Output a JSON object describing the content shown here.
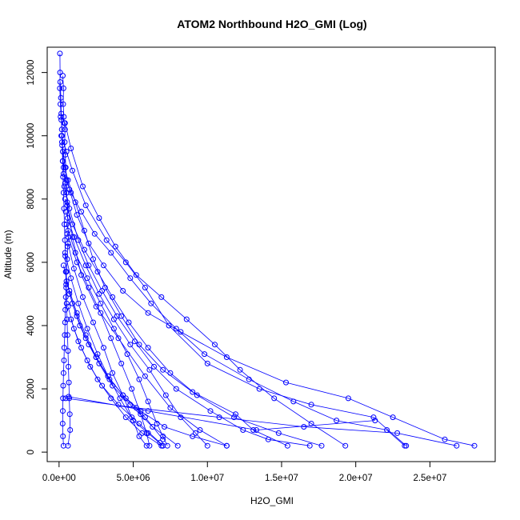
{
  "chart_data": {
    "type": "line",
    "title": "ATOM2 Northbound H2O_GMI (Log)",
    "xlabel": "H2O_GMI",
    "ylabel": "Altitude (m)",
    "xlim": [
      -800000,
      29400000
    ],
    "ylim": [
      -300,
      12800
    ],
    "xticks": [
      0,
      5000000,
      10000000,
      15000000,
      20000000,
      25000000
    ],
    "xtick_labels": [
      "0.0e+00",
      "5.0e+06",
      "1.0e+07",
      "1.5e+07",
      "2.0e+07",
      "2.5e+07"
    ],
    "yticks": [
      0,
      2000,
      4000,
      6000,
      8000,
      10000,
      12000
    ],
    "ytick_labels": [
      "0",
      "2000",
      "4000",
      "6000",
      "8000",
      "10000",
      "12000"
    ],
    "grid": false,
    "marker": "open-circle",
    "color": "#0000ff",
    "series": [
      {
        "values": [
          [
            60000,
            12600
          ],
          [
            70000,
            12000
          ],
          [
            50000,
            11500
          ],
          [
            90000,
            11000
          ],
          [
            150000,
            10500
          ],
          [
            200000,
            10000
          ],
          [
            250000,
            9500
          ],
          [
            300000,
            9000
          ],
          [
            400000,
            8500
          ],
          [
            550000,
            7900
          ],
          [
            900000,
            6800
          ],
          [
            1500000,
            5600
          ],
          [
            2500000,
            4600
          ],
          [
            4000000,
            3600
          ],
          [
            5800000,
            2400
          ],
          [
            7500000,
            1400
          ],
          [
            9500000,
            700
          ],
          [
            11300000,
            200
          ]
        ]
      },
      {
        "values": [
          [
            100000,
            10600
          ],
          [
            400000,
            10400
          ],
          [
            800000,
            9600
          ],
          [
            1600000,
            8400
          ],
          [
            2700000,
            7400
          ],
          [
            3800000,
            6500
          ],
          [
            5200000,
            5600
          ],
          [
            6900000,
            4900
          ],
          [
            8600000,
            4200
          ],
          [
            10500000,
            3400
          ],
          [
            12200000,
            2600
          ],
          [
            14500000,
            1700
          ],
          [
            17000000,
            900
          ],
          [
            19300000,
            200
          ]
        ]
      },
      {
        "values": [
          [
            150000,
            10000
          ],
          [
            500000,
            9500
          ],
          [
            900000,
            8900
          ],
          [
            1800000,
            7800
          ],
          [
            3200000,
            6700
          ],
          [
            4500000,
            6000
          ],
          [
            5800000,
            5200
          ],
          [
            7400000,
            4000
          ],
          [
            10000000,
            2800
          ],
          [
            13500000,
            2000
          ],
          [
            17000000,
            1500
          ],
          [
            21200000,
            1100
          ],
          [
            23400000,
            200
          ]
        ]
      },
      {
        "values": [
          [
            200000,
            9800
          ],
          [
            400000,
            9000
          ],
          [
            700000,
            8300
          ],
          [
            1200000,
            7500
          ],
          [
            2000000,
            6600
          ],
          [
            3000000,
            5900
          ],
          [
            4300000,
            5100
          ],
          [
            6000000,
            4400
          ],
          [
            8200000,
            3800
          ],
          [
            11300000,
            3000
          ],
          [
            15300000,
            2200
          ],
          [
            19500000,
            1700
          ],
          [
            22500000,
            1100
          ],
          [
            26000000,
            400
          ],
          [
            28000000,
            200
          ]
        ]
      },
      {
        "values": [
          [
            250000,
            9200
          ],
          [
            600000,
            8600
          ],
          [
            1100000,
            7900
          ],
          [
            1700000,
            7000
          ],
          [
            2300000,
            6100
          ],
          [
            3100000,
            5200
          ],
          [
            4200000,
            4300
          ],
          [
            5400000,
            3400
          ],
          [
            7000000,
            2600
          ],
          [
            9000000,
            1900
          ],
          [
            11900000,
            1200
          ],
          [
            13100000,
            700
          ],
          [
            15400000,
            200
          ]
        ]
      },
      {
        "values": [
          [
            300000,
            8800
          ],
          [
            800000,
            8200
          ],
          [
            1500000,
            7600
          ],
          [
            2400000,
            6900
          ],
          [
            3500000,
            6300
          ],
          [
            4800000,
            5500
          ],
          [
            6200000,
            4700
          ],
          [
            7900000,
            3900
          ],
          [
            9800000,
            3100
          ],
          [
            12800000,
            2300
          ],
          [
            15800000,
            1600
          ],
          [
            18700000,
            1000
          ],
          [
            22100000,
            700
          ],
          [
            23300000,
            200
          ]
        ]
      },
      {
        "values": [
          [
            350000,
            8400
          ],
          [
            700000,
            7700
          ],
          [
            1300000,
            6700
          ],
          [
            2000000,
            5900
          ],
          [
            2900000,
            5100
          ],
          [
            3900000,
            4300
          ],
          [
            5100000,
            3500
          ],
          [
            6400000,
            2700
          ],
          [
            7900000,
            2000
          ],
          [
            10200000,
            1300
          ],
          [
            12400000,
            700
          ],
          [
            14100000,
            400
          ],
          [
            16900000,
            200
          ]
        ]
      },
      {
        "values": [
          [
            400000,
            8000
          ],
          [
            900000,
            7200
          ],
          [
            1700000,
            6400
          ],
          [
            2600000,
            5700
          ],
          [
            3600000,
            4900
          ],
          [
            4700000,
            4100
          ],
          [
            6000000,
            3300
          ],
          [
            7500000,
            2500
          ],
          [
            9300000,
            1800
          ],
          [
            11800000,
            1100
          ],
          [
            14800000,
            600
          ],
          [
            17700000,
            200
          ]
        ]
      },
      {
        "values": [
          [
            450000,
            7600
          ],
          [
            1000000,
            6800
          ],
          [
            1800000,
            5900
          ],
          [
            2700000,
            5000
          ],
          [
            3700000,
            4200
          ],
          [
            4800000,
            3400
          ],
          [
            6100000,
            2600
          ],
          [
            7200000,
            1800
          ],
          [
            8200000,
            1100
          ],
          [
            9200000,
            600
          ],
          [
            10000000,
            200
          ]
        ]
      },
      {
        "values": [
          [
            500000,
            7200
          ],
          [
            1100000,
            6300
          ],
          [
            1900000,
            5500
          ],
          [
            2800000,
            4700
          ],
          [
            3700000,
            3900
          ],
          [
            4600000,
            3100
          ],
          [
            5400000,
            2300
          ],
          [
            6000000,
            1600
          ],
          [
            6600000,
            900
          ],
          [
            7000000,
            500
          ],
          [
            7300000,
            200
          ]
        ]
      },
      {
        "values": [
          [
            550000,
            6900
          ],
          [
            1200000,
            6000
          ],
          [
            2000000,
            5200
          ],
          [
            2800000,
            4400
          ],
          [
            3500000,
            3600
          ],
          [
            4200000,
            2800
          ],
          [
            4900000,
            2000
          ],
          [
            5500000,
            1200
          ],
          [
            5900000,
            600
          ],
          [
            6100000,
            200
          ]
        ]
      },
      {
        "values": [
          [
            600000,
            6600
          ],
          [
            1000000,
            5800
          ],
          [
            1600000,
            4900
          ],
          [
            2300000,
            4100
          ],
          [
            3000000,
            3300
          ],
          [
            3600000,
            2500
          ],
          [
            4300000,
            1800
          ],
          [
            4900000,
            1100
          ],
          [
            5400000,
            500
          ],
          [
            5900000,
            200
          ]
        ]
      },
      {
        "values": [
          [
            400000,
            6300
          ],
          [
            800000,
            5500
          ],
          [
            1300000,
            4700
          ],
          [
            1900000,
            3900
          ],
          [
            2600000,
            3100
          ],
          [
            3300000,
            2400
          ],
          [
            4100000,
            1700
          ],
          [
            5000000,
            1000
          ],
          [
            6000000,
            600
          ],
          [
            7000000,
            200
          ]
        ]
      },
      {
        "values": [
          [
            300000,
            5900
          ],
          [
            700000,
            5100
          ],
          [
            1200000,
            4400
          ],
          [
            1800000,
            3700
          ],
          [
            2500000,
            3000
          ],
          [
            3400000,
            2300
          ],
          [
            4500000,
            1700
          ],
          [
            5800000,
            1100
          ],
          [
            7000000,
            400
          ]
        ]
      },
      {
        "values": [
          [
            500000,
            5400
          ],
          [
            900000,
            4700
          ],
          [
            1400000,
            4000
          ],
          [
            2000000,
            3400
          ],
          [
            2700000,
            2800
          ],
          [
            3600000,
            2100
          ],
          [
            4800000,
            1500
          ],
          [
            6300000,
            800
          ],
          [
            8000000,
            200
          ]
        ]
      },
      {
        "values": [
          [
            700000,
            5000
          ],
          [
            1200000,
            4300
          ],
          [
            1800000,
            3600
          ],
          [
            2500000,
            3000
          ],
          [
            3300000,
            2400
          ],
          [
            4300000,
            1800
          ],
          [
            5500000,
            1300
          ],
          [
            7100000,
            800
          ],
          [
            9000000,
            500
          ],
          [
            11300000,
            200
          ]
        ]
      },
      {
        "values": [
          [
            650000,
            1750
          ],
          [
            6000000,
            1300
          ],
          [
            13300000,
            700
          ],
          [
            21300000,
            1000
          ]
        ]
      },
      {
        "values": [
          [
            450000,
            1700
          ],
          [
            5200000,
            1400
          ],
          [
            10800000,
            1100
          ],
          [
            16500000,
            800
          ],
          [
            22800000,
            600
          ],
          [
            26800000,
            200
          ]
        ]
      },
      {
        "values": [
          [
            600000,
            4600
          ],
          [
            1000000,
            3900
          ],
          [
            1500000,
            3300
          ],
          [
            2100000,
            2700
          ],
          [
            2900000,
            2100
          ],
          [
            4000000,
            1500
          ],
          [
            5400000,
            900
          ],
          [
            6800000,
            300
          ],
          [
            7000000,
            200
          ]
        ]
      },
      {
        "values": [
          [
            800000,
            4200
          ],
          [
            1300000,
            3500
          ],
          [
            1900000,
            2900
          ],
          [
            2600000,
            2300
          ],
          [
            3500000,
            1700
          ],
          [
            4500000,
            1100
          ],
          [
            5600000,
            600
          ],
          [
            6900000,
            200
          ]
        ]
      },
      {
        "values": [
          [
            250000,
            11900
          ],
          [
            300000,
            11500
          ],
          [
            280000,
            11000
          ],
          [
            320000,
            10600
          ],
          [
            350000,
            10400
          ],
          [
            400000,
            10200
          ],
          [
            380000,
            9800
          ],
          [
            420000,
            9400
          ],
          [
            450000,
            9000
          ],
          [
            500000,
            8600
          ],
          [
            520000,
            8200
          ],
          [
            550000,
            7800
          ],
          [
            580000,
            7400
          ],
          [
            600000,
            7000
          ],
          [
            620000,
            6800
          ],
          [
            580000,
            6500
          ],
          [
            550000,
            6100
          ],
          [
            500000,
            5700
          ],
          [
            480000,
            5300
          ],
          [
            450000,
            4900
          ],
          [
            420000,
            4500
          ],
          [
            400000,
            4100
          ],
          [
            380000,
            3700
          ],
          [
            350000,
            3300
          ],
          [
            330000,
            2900
          ],
          [
            300000,
            2500
          ],
          [
            280000,
            2100
          ],
          [
            260000,
            1700
          ],
          [
            250000,
            1300
          ],
          [
            240000,
            900
          ],
          [
            260000,
            500
          ],
          [
            300000,
            200
          ]
        ]
      },
      {
        "values": [
          [
            80000,
            11700
          ],
          [
            120000,
            11200
          ],
          [
            150000,
            10700
          ],
          [
            180000,
            10200
          ],
          [
            210000,
            9700
          ],
          [
            240000,
            9200
          ],
          [
            270000,
            8700
          ],
          [
            300000,
            8200
          ],
          [
            330000,
            7700
          ],
          [
            360000,
            7200
          ],
          [
            390000,
            6700
          ],
          [
            420000,
            6200
          ],
          [
            450000,
            5700
          ],
          [
            480000,
            5200
          ],
          [
            510000,
            4700
          ],
          [
            540000,
            4200
          ],
          [
            570000,
            3700
          ],
          [
            600000,
            3200
          ],
          [
            630000,
            2700
          ],
          [
            660000,
            2200
          ],
          [
            690000,
            1700
          ],
          [
            720000,
            1200
          ],
          [
            750000,
            700
          ],
          [
            600000,
            200
          ]
        ]
      }
    ]
  }
}
